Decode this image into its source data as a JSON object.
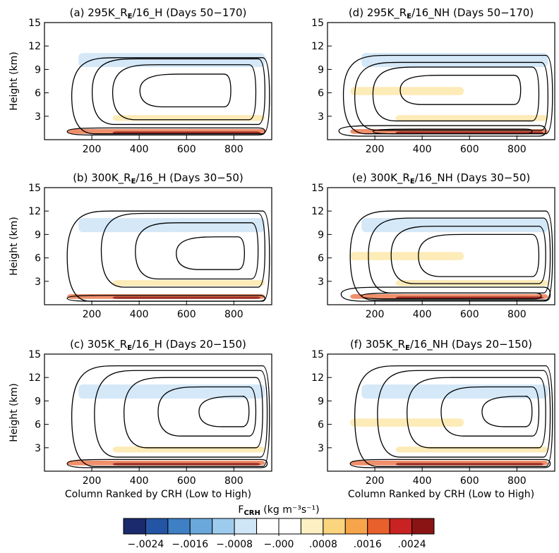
{
  "chart_data": [
    {
      "type": "contour",
      "title_prefix": "(a) 295K_R",
      "title_sub": "E",
      "title_suffix": "/16_H (Days 50−170)",
      "ylabel": "Height (km)",
      "xlim": [
        0,
        960
      ],
      "ylim": [
        0,
        15
      ],
      "xticks": [
        200,
        400,
        600,
        800
      ],
      "yticks": [
        3,
        6,
        9,
        12,
        15
      ]
    },
    {
      "type": "contour",
      "title_prefix": "(d) 295K_R",
      "title_sub": "E",
      "title_suffix": "/16_NH (Days 50−170)",
      "xlim": [
        0,
        960
      ],
      "ylim": [
        0,
        15
      ],
      "xticks": [
        200,
        400,
        600,
        800
      ],
      "yticks": [
        3,
        6,
        9,
        12,
        15
      ]
    },
    {
      "type": "contour",
      "title_prefix": "(b) 300K_R",
      "title_sub": "E",
      "title_suffix": "/16_H (Days 30−50)",
      "ylabel": "Height (km)",
      "xlim": [
        0,
        960
      ],
      "ylim": [
        0,
        15
      ],
      "xticks": [
        200,
        400,
        600,
        800
      ],
      "yticks": [
        3,
        6,
        9,
        12,
        15
      ]
    },
    {
      "type": "contour",
      "title_prefix": "(e) 300K_R",
      "title_sub": "E",
      "title_suffix": "/16_NH (Days 30−50)",
      "xlim": [
        0,
        960
      ],
      "ylim": [
        0,
        15
      ],
      "xticks": [
        200,
        400,
        600,
        800
      ],
      "yticks": [
        3,
        6,
        9,
        12,
        15
      ]
    },
    {
      "type": "contour",
      "title_prefix": "(c) 305K_R",
      "title_sub": "E",
      "title_suffix": "/16_H (Days 20−150)",
      "ylabel": "Height (km)",
      "xlabel": "Column Ranked by CRH (Low to High)",
      "xlim": [
        0,
        960
      ],
      "ylim": [
        0,
        15
      ],
      "xticks": [
        200,
        400,
        600,
        800
      ],
      "yticks": [
        3,
        6,
        9,
        12,
        15
      ]
    },
    {
      "type": "contour",
      "title_prefix": "(f) 305K_R",
      "title_sub": "E",
      "title_suffix": "/16_NH (Days 20−150)",
      "xlabel": "Column Ranked by CRH (Low to High)",
      "xlim": [
        0,
        960
      ],
      "ylim": [
        0,
        15
      ],
      "xticks": [
        200,
        400,
        600,
        800
      ],
      "yticks": [
        3,
        6,
        9,
        12,
        15
      ]
    }
  ],
  "colorbar": {
    "label_main": "F",
    "label_sub": "CRH",
    "label_units": " (kg m⁻³s⁻¹)",
    "lim": [
      -0.0028,
      0.0028
    ],
    "colors": [
      "#1a2a6c",
      "#2455a4",
      "#3f7fc4",
      "#6aa8dc",
      "#9dcbee",
      "#cfe6f7",
      "#ffffff",
      "#ffffff",
      "#fdf0c2",
      "#fbd47e",
      "#f6a54a",
      "#e8602c",
      "#c92222",
      "#8a1414"
    ],
    "ticks": [
      {
        "value": -0.0024,
        "label": "−.0024"
      },
      {
        "value": -0.0016,
        "label": "−.0016"
      },
      {
        "value": -0.0008,
        "label": "−.0008"
      },
      {
        "value": 0,
        "label": "−.000"
      },
      {
        "value": 0.0008,
        "label": ".0008"
      },
      {
        "value": 0.0016,
        "label": ".0016"
      },
      {
        "value": 0.0024,
        "label": ".0024"
      }
    ]
  }
}
